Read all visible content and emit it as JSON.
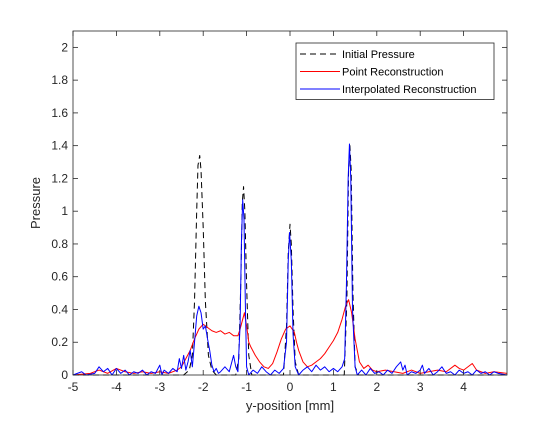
{
  "chart_data": {
    "type": "line",
    "title": "",
    "xlabel": "y-position [mm]",
    "ylabel": "Pressure",
    "xlim": [
      -5,
      5
    ],
    "ylim": [
      0,
      2.1
    ],
    "x_ticks": [
      -5,
      -4,
      -3,
      -2,
      -1,
      0,
      1,
      2,
      3,
      4
    ],
    "y_ticks": [
      0,
      0.2,
      0.4,
      0.6,
      0.8,
      1,
      1.2,
      1.4,
      1.6,
      1.8,
      2
    ],
    "x_tick_labels": [
      "-5",
      "-4",
      "-3",
      "-2",
      "-1",
      "0",
      "1",
      "2",
      "3",
      "4"
    ],
    "y_tick_labels": [
      "0",
      "0.2",
      "0.4",
      "0.6",
      "0.8",
      "1",
      "1.2",
      "1.4",
      "1.6",
      "1.8",
      "2"
    ],
    "grid": false,
    "legend_position": "top-right",
    "series": [
      {
        "name": "Initial Pressure",
        "color": "#000000",
        "style": "dashed",
        "points": [
          [
            -5,
            0
          ],
          [
            -2.45,
            0
          ],
          [
            -2.32,
            0.03
          ],
          [
            -2.25,
            0.12
          ],
          [
            -2.2,
            0.45
          ],
          [
            -2.15,
            1.0
          ],
          [
            -2.12,
            1.28
          ],
          [
            -2.08,
            1.34
          ],
          [
            -2.05,
            1.25
          ],
          [
            -2.0,
            0.9
          ],
          [
            -1.95,
            0.45
          ],
          [
            -1.88,
            0.12
          ],
          [
            -1.8,
            0.03
          ],
          [
            -1.7,
            0.0
          ],
          [
            -1.25,
            0.0
          ],
          [
            -1.18,
            0.1
          ],
          [
            -1.13,
            0.6
          ],
          [
            -1.1,
            1.05
          ],
          [
            -1.07,
            1.15
          ],
          [
            -1.04,
            1.0
          ],
          [
            -1.0,
            0.55
          ],
          [
            -0.95,
            0.12
          ],
          [
            -0.88,
            0.0
          ],
          [
            -0.15,
            0.0
          ],
          [
            -0.08,
            0.3
          ],
          [
            -0.04,
            0.75
          ],
          [
            0.0,
            0.92
          ],
          [
            0.03,
            0.8
          ],
          [
            0.07,
            0.4
          ],
          [
            0.12,
            0.08
          ],
          [
            0.2,
            0.0
          ],
          [
            1.25,
            0.0
          ],
          [
            1.31,
            0.45
          ],
          [
            1.35,
            1.25
          ],
          [
            1.38,
            1.4
          ],
          [
            1.41,
            1.25
          ],
          [
            1.45,
            0.5
          ],
          [
            1.5,
            0.05
          ],
          [
            1.58,
            0.0
          ],
          [
            5,
            0
          ]
        ]
      },
      {
        "name": "Point Reconstruction",
        "color": "#ff0000",
        "style": "solid",
        "points": [
          [
            -5,
            0
          ],
          [
            -4.6,
            0.01
          ],
          [
            -4.4,
            0.03
          ],
          [
            -4.2,
            0.01
          ],
          [
            -4.0,
            0.04
          ],
          [
            -3.8,
            0.02
          ],
          [
            -3.6,
            0.01
          ],
          [
            -3.4,
            0.02
          ],
          [
            -3.2,
            0.01
          ],
          [
            -3.0,
            0.02
          ],
          [
            -2.8,
            0.01
          ],
          [
            -2.6,
            0.03
          ],
          [
            -2.5,
            0.05
          ],
          [
            -2.4,
            0.1
          ],
          [
            -2.3,
            0.15
          ],
          [
            -2.2,
            0.22
          ],
          [
            -2.1,
            0.28
          ],
          [
            -2.0,
            0.31
          ],
          [
            -1.9,
            0.29
          ],
          [
            -1.8,
            0.27
          ],
          [
            -1.7,
            0.26
          ],
          [
            -1.6,
            0.27
          ],
          [
            -1.5,
            0.25
          ],
          [
            -1.4,
            0.26
          ],
          [
            -1.3,
            0.24
          ],
          [
            -1.2,
            0.24
          ],
          [
            -1.15,
            0.28
          ],
          [
            -1.1,
            0.33
          ],
          [
            -1.05,
            0.38
          ],
          [
            -1.0,
            0.3
          ],
          [
            -0.95,
            0.2
          ],
          [
            -0.9,
            0.17
          ],
          [
            -0.8,
            0.12
          ],
          [
            -0.7,
            0.08
          ],
          [
            -0.6,
            0.05
          ],
          [
            -0.5,
            0.04
          ],
          [
            -0.4,
            0.07
          ],
          [
            -0.3,
            0.14
          ],
          [
            -0.2,
            0.22
          ],
          [
            -0.1,
            0.28
          ],
          [
            0.0,
            0.3
          ],
          [
            0.1,
            0.26
          ],
          [
            0.15,
            0.2
          ],
          [
            0.2,
            0.15
          ],
          [
            0.3,
            0.08
          ],
          [
            0.4,
            0.05
          ],
          [
            0.5,
            0.06
          ],
          [
            0.6,
            0.08
          ],
          [
            0.7,
            0.1
          ],
          [
            0.8,
            0.13
          ],
          [
            0.9,
            0.17
          ],
          [
            1.0,
            0.21
          ],
          [
            1.1,
            0.26
          ],
          [
            1.2,
            0.34
          ],
          [
            1.28,
            0.42
          ],
          [
            1.35,
            0.46
          ],
          [
            1.42,
            0.38
          ],
          [
            1.5,
            0.22
          ],
          [
            1.6,
            0.08
          ],
          [
            1.7,
            0.04
          ],
          [
            1.8,
            0.06
          ],
          [
            1.9,
            0.03
          ],
          [
            2.0,
            0.02
          ],
          [
            2.2,
            0.03
          ],
          [
            2.4,
            0.02
          ],
          [
            2.6,
            0.01
          ],
          [
            2.8,
            0.03
          ],
          [
            3.0,
            0.01
          ],
          [
            3.2,
            0.02
          ],
          [
            3.4,
            0.03
          ],
          [
            3.6,
            0.02
          ],
          [
            3.8,
            0.06
          ],
          [
            3.9,
            0.04
          ],
          [
            4.0,
            0.03
          ],
          [
            4.2,
            0.07
          ],
          [
            4.3,
            0.03
          ],
          [
            4.5,
            0.01
          ],
          [
            4.7,
            0.02
          ],
          [
            5,
            0.01
          ]
        ]
      },
      {
        "name": "Interpolated Reconstruction",
        "color": "#0000ff",
        "style": "solid",
        "points": [
          [
            -5,
            0
          ],
          [
            -4.8,
            0.02
          ],
          [
            -4.7,
            0.0
          ],
          [
            -4.5,
            0.01
          ],
          [
            -4.4,
            0.05
          ],
          [
            -4.3,
            0.02
          ],
          [
            -4.2,
            0.04
          ],
          [
            -4.1,
            0.0
          ],
          [
            -4.0,
            0.04
          ],
          [
            -3.9,
            0.01
          ],
          [
            -3.8,
            0.03
          ],
          [
            -3.7,
            0.0
          ],
          [
            -3.6,
            0.02
          ],
          [
            -3.5,
            0.01
          ],
          [
            -3.4,
            0.03
          ],
          [
            -3.3,
            0.0
          ],
          [
            -3.2,
            0.02
          ],
          [
            -3.1,
            0.01
          ],
          [
            -3.0,
            0.06
          ],
          [
            -2.95,
            0.0
          ],
          [
            -2.9,
            0.03
          ],
          [
            -2.8,
            0.01
          ],
          [
            -2.7,
            0.04
          ],
          [
            -2.6,
            0.02
          ],
          [
            -2.55,
            0.1
          ],
          [
            -2.5,
            0.04
          ],
          [
            -2.45,
            0.12
          ],
          [
            -2.4,
            0.03
          ],
          [
            -2.35,
            0.08
          ],
          [
            -2.3,
            0.15
          ],
          [
            -2.25,
            0.05
          ],
          [
            -2.2,
            0.2
          ],
          [
            -2.15,
            0.36
          ],
          [
            -2.1,
            0.42
          ],
          [
            -2.05,
            0.38
          ],
          [
            -2.0,
            0.28
          ],
          [
            -1.95,
            0.3
          ],
          [
            -1.9,
            0.22
          ],
          [
            -1.85,
            0.15
          ],
          [
            -1.8,
            0.06
          ],
          [
            -1.75,
            0.02
          ],
          [
            -1.7,
            0.04
          ],
          [
            -1.65,
            0.01
          ],
          [
            -1.6,
            0.02
          ],
          [
            -1.5,
            0.05
          ],
          [
            -1.4,
            0.02
          ],
          [
            -1.35,
            0.07
          ],
          [
            -1.3,
            0.12
          ],
          [
            -1.25,
            0.05
          ],
          [
            -1.2,
            0.02
          ],
          [
            -1.15,
            0.3
          ],
          [
            -1.12,
            0.8
          ],
          [
            -1.09,
            1.07
          ],
          [
            -1.06,
            0.95
          ],
          [
            -1.03,
            0.45
          ],
          [
            -1.0,
            0.05
          ],
          [
            -0.95,
            0.0
          ],
          [
            -0.85,
            0.03
          ],
          [
            -0.75,
            0.01
          ],
          [
            -0.65,
            0.05
          ],
          [
            -0.55,
            0.02
          ],
          [
            -0.45,
            0.0
          ],
          [
            -0.35,
            0.03
          ],
          [
            -0.25,
            0.01
          ],
          [
            -0.15,
            0.04
          ],
          [
            -0.08,
            0.2
          ],
          [
            -0.04,
            0.7
          ],
          [
            -0.01,
            0.87
          ],
          [
            0.03,
            0.7
          ],
          [
            0.07,
            0.25
          ],
          [
            0.12,
            0.05
          ],
          [
            0.2,
            0.0
          ],
          [
            0.3,
            0.03
          ],
          [
            0.4,
            0.05
          ],
          [
            0.5,
            0.02
          ],
          [
            0.6,
            0.06
          ],
          [
            0.7,
            0.03
          ],
          [
            0.8,
            0.05
          ],
          [
            0.9,
            0.02
          ],
          [
            1.0,
            0.04
          ],
          [
            1.1,
            0.02
          ],
          [
            1.2,
            0.05
          ],
          [
            1.26,
            0.1
          ],
          [
            1.3,
            0.55
          ],
          [
            1.34,
            1.2
          ],
          [
            1.37,
            1.41
          ],
          [
            1.4,
            1.2
          ],
          [
            1.44,
            0.4
          ],
          [
            1.5,
            0.05
          ],
          [
            1.55,
            0.0
          ],
          [
            1.65,
            0.03
          ],
          [
            1.75,
            0.0
          ],
          [
            1.85,
            0.04
          ],
          [
            1.95,
            0.01
          ],
          [
            2.05,
            0.02
          ],
          [
            2.15,
            0.0
          ],
          [
            2.25,
            0.03
          ],
          [
            2.35,
            0.01
          ],
          [
            2.45,
            0.05
          ],
          [
            2.55,
            0.08
          ],
          [
            2.6,
            0.03
          ],
          [
            2.65,
            0.06
          ],
          [
            2.7,
            0.0
          ],
          [
            2.8,
            0.02
          ],
          [
            2.9,
            0.01
          ],
          [
            3.0,
            0.03
          ],
          [
            3.05,
            0.06
          ],
          [
            3.1,
            0.01
          ],
          [
            3.2,
            0.04
          ],
          [
            3.3,
            0.0
          ],
          [
            3.4,
            0.02
          ],
          [
            3.5,
            0.05
          ],
          [
            3.6,
            0.01
          ],
          [
            3.7,
            0.02
          ],
          [
            3.8,
            0.0
          ],
          [
            3.9,
            0.03
          ],
          [
            4.0,
            0.01
          ],
          [
            4.1,
            0.02
          ],
          [
            4.2,
            0.0
          ],
          [
            4.3,
            0.03
          ],
          [
            4.4,
            0.01
          ],
          [
            4.5,
            0.02
          ],
          [
            4.6,
            0.0
          ],
          [
            4.7,
            0.02
          ],
          [
            4.8,
            0.01
          ],
          [
            5,
            0.0
          ]
        ]
      }
    ]
  }
}
